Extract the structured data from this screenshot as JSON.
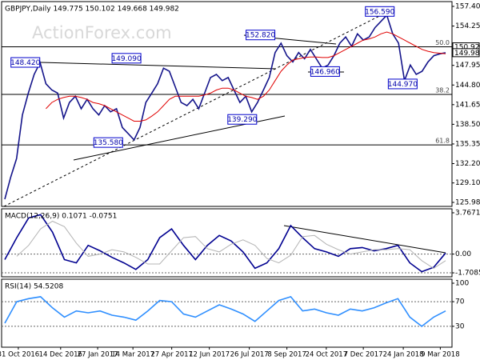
{
  "chart_data": [
    {
      "type": "line",
      "title": "GBPJPY,Daily  149.775 150.102 149.668 149.982",
      "watermark": "ActionForex.com",
      "series": [
        {
          "color": "#14148a",
          "values": [
            126.5,
            130,
            133,
            140,
            143.5,
            146.5,
            148.4,
            145,
            144,
            143.5,
            139.5,
            142,
            143,
            141,
            142.5,
            141,
            140,
            141.5,
            140.5,
            141,
            138,
            137,
            136,
            138,
            142,
            143.5,
            145,
            147.5,
            147,
            144.5,
            142,
            141.5,
            142.5,
            141,
            143.5,
            146,
            146.5,
            145.5,
            146,
            144,
            142,
            143,
            140.5,
            142,
            144,
            146,
            150,
            151.5,
            149.5,
            148.5,
            150,
            149,
            150.5,
            149,
            147.5,
            148,
            149.5,
            151.5,
            152.5,
            151,
            153,
            152,
            152.5,
            154,
            155,
            156,
            153,
            151.5,
            145.5,
            148,
            146.5,
            147,
            148.5,
            149.5,
            149.8,
            149.98
          ]
        },
        {
          "color": "#e00000",
          "values": [
            null,
            null,
            null,
            null,
            null,
            null,
            null,
            141,
            142,
            142.5,
            142.8,
            143,
            143,
            142.8,
            142.5,
            142,
            141.8,
            141.5,
            141,
            140.5,
            140,
            139.5,
            139,
            139,
            139.2,
            139.8,
            140.5,
            141.5,
            142.5,
            143,
            143,
            143,
            143,
            143,
            143.2,
            143.5,
            144,
            144.3,
            144.3,
            144,
            143.5,
            143,
            142.8,
            142.5,
            143,
            144,
            145.5,
            147,
            148,
            148.8,
            149,
            149.2,
            149.3,
            149.3,
            149.2,
            149.2,
            149.5,
            150,
            150.5,
            151,
            151.5,
            152,
            152.2,
            152.5,
            153,
            153.3,
            153,
            152.5,
            152,
            151.5,
            151,
            150.5,
            150.2,
            150,
            149.9,
            149.8
          ]
        }
      ],
      "xlim": [
        0,
        75
      ],
      "xticks": [
        {
          "value": 2.3,
          "label": "31 Oct 2016"
        },
        {
          "value": 9.5,
          "label": "14 Dec 2016"
        },
        {
          "value": 15.8,
          "label": "27 Jan 2017"
        },
        {
          "value": 21.8,
          "label": "14 Mar 2017"
        },
        {
          "value": 28.4,
          "label": "27 Apr 2017"
        },
        {
          "value": 34.8,
          "label": "12 Jun 2017"
        },
        {
          "value": 41.6,
          "label": "26 Jul 2017"
        },
        {
          "value": 48,
          "label": "8 Sep 2017"
        },
        {
          "value": 54.7,
          "label": "24 Oct 2017"
        },
        {
          "value": 61,
          "label": "7 Dec 2017"
        },
        {
          "value": 67.8,
          "label": "24 Jan 2018"
        },
        {
          "value": 74.1,
          "label": "9 Mar 2018"
        }
      ],
      "ylim": [
        125.34,
        158.17
      ],
      "yticks": [
        157.404,
        {
          "value": 154.25,
          "label": "154.250"
        },
        {
          "value": 151.14,
          "label": "151.140"
        },
        {
          "value": 147.95,
          "label": "147.950"
        },
        {
          "value": 144.8,
          "label": "144.800"
        },
        {
          "value": 141.65,
          "label": "141.650"
        },
        {
          "value": 138.5,
          "label": "138.500"
        },
        {
          "value": 135.35,
          "label": "135.350"
        },
        {
          "value": 132.2,
          "label": "132.200"
        },
        {
          "value": 129.1,
          "label": "129.100"
        },
        {
          "value": 125.98,
          "label": "125.980"
        }
      ],
      "grid": false,
      "levels": [
        {
          "label": "50.0",
          "value": 150.92
        },
        {
          "label": "38.2",
          "value": 143.3
        },
        {
          "label": "61.8",
          "value": 135.2
        }
      ],
      "annotations": [
        {
          "label": "148.420",
          "value": 148.42,
          "x": 3.5
        },
        {
          "label": "149.090",
          "value": 149.09,
          "x": 20.7
        },
        {
          "label": "152.820",
          "value": 152.82,
          "x": 43.5
        },
        {
          "label": "146.960",
          "value": 146.96,
          "x": 54.5
        },
        {
          "label": "139.290",
          "value": 139.29,
          "x": 40.4
        },
        {
          "label": "135.580",
          "value": 135.58,
          "x": 17.6
        },
        {
          "label": "156.590",
          "value": 156.59,
          "x": 63.8
        },
        {
          "label": "144.970",
          "value": 144.97,
          "x": 67.7
        }
      ],
      "price_labels": [
        {
          "label": "150.920",
          "value": 150.92
        },
        {
          "label": "149.982",
          "value": 149.982
        }
      ]
    },
    {
      "type": "line",
      "title": "MACD(12,26,9) 0.1071 -0.0751",
      "series": [
        {
          "color": "#000090",
          "values": [
            -0.5,
            1.5,
            3.3,
            3.6,
            2.0,
            -0.5,
            -0.8,
            0.8,
            0.3,
            -0.3,
            -0.8,
            -1.4,
            -0.5,
            1.5,
            2.3,
            0.8,
            -0.5,
            0.8,
            1.7,
            1.2,
            0.2,
            -1.3,
            -0.8,
            0.5,
            2.6,
            1.5,
            0.5,
            0.2,
            -0.2,
            0.5,
            0.6,
            0.3,
            0.5,
            0.8,
            -0.8,
            -1.6,
            -1.2,
            0.1
          ]
        },
        {
          "color": "#b4b4b4",
          "values": [
            null,
            -0.2,
            0.8,
            2.3,
            3.0,
            2.5,
            1.0,
            -0.2,
            0,
            0.4,
            0.2,
            -0.3,
            -0.9,
            -0.9,
            0.3,
            1.5,
            1.6,
            0.5,
            0.2,
            0.9,
            1.3,
            0.8,
            -0.4,
            -0.8,
            -0.1,
            1.6,
            1.7,
            0.9,
            0.4,
            0,
            0.2,
            0.4,
            0.4,
            0.5,
            0.4,
            -0.6,
            -1.3,
            -0.6
          ]
        }
      ],
      "xlim": [
        0,
        37
      ],
      "ylim": [
        -2.07,
        4.13
      ],
      "yticks": [
        3.7671,
        {
          "value": 0,
          "label": "0.00"
        },
        -1.7085
      ],
      "grid": true
    },
    {
      "type": "line",
      "title": "RSI(14) 54.5208",
      "series": [
        {
          "color": "#2f8fff",
          "values": [
            35,
            70,
            75,
            78,
            60,
            45,
            55,
            52,
            55,
            48,
            45,
            40,
            55,
            72,
            70,
            50,
            45,
            55,
            65,
            58,
            50,
            38,
            55,
            72,
            78,
            55,
            58,
            52,
            48,
            58,
            55,
            60,
            68,
            75,
            45,
            30,
            45,
            55
          ]
        }
      ],
      "xlim": [
        0,
        37
      ],
      "ylim": [
        -3.9,
        106.5
      ],
      "yticks": [
        100,
        70,
        30
      ],
      "grid": true
    }
  ]
}
